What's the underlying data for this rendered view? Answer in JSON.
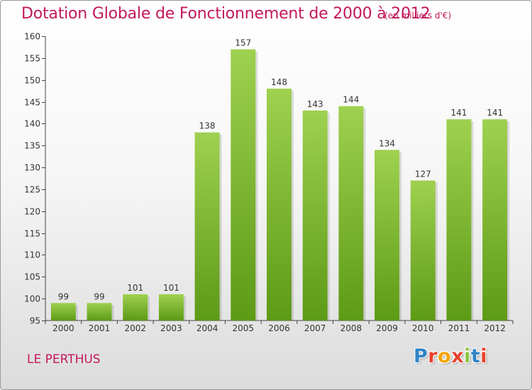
{
  "header": {
    "title": "Dotation Globale de Fonctionnement de 2000 à 2012",
    "subtitle": "(en milliers d'€)"
  },
  "footer": {
    "commune": "LE PERTHUS",
    "logo_text": "Proxiti",
    "logo_colors": [
      "#2f83c5",
      "#e8412c",
      "#f5a300",
      "#e8412c",
      "#8ac43f",
      "#2f83c5",
      "#e8412c"
    ]
  },
  "chart_data": {
    "type": "bar",
    "title": "Dotation Globale de Fonctionnement de 2000 à 2012",
    "subtitle": "(en milliers d'€)",
    "xlabel": "",
    "ylabel": "",
    "categories": [
      "2000",
      "2001",
      "2002",
      "2003",
      "2004",
      "2005",
      "2006",
      "2007",
      "2008",
      "2009",
      "2010",
      "2011",
      "2012"
    ],
    "values": [
      99,
      99,
      101,
      101,
      138,
      157,
      148,
      143,
      144,
      134,
      127,
      141,
      141
    ],
    "ylim": [
      95,
      160
    ],
    "yticks": [
      95,
      100,
      105,
      110,
      115,
      120,
      125,
      130,
      135,
      140,
      145,
      150,
      155,
      160
    ],
    "grid": false,
    "legend": "none",
    "bar_color_top": "#9ed14f",
    "bar_color_bottom": "#5d9a16"
  }
}
